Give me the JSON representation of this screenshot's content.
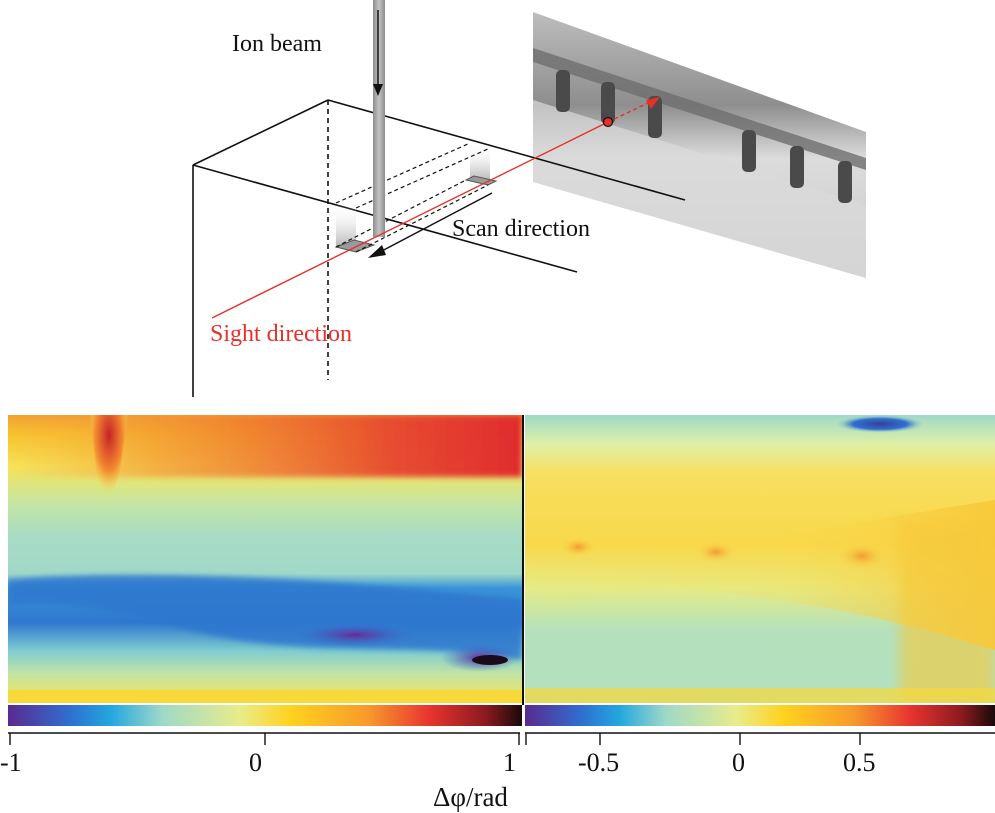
{
  "schematic": {
    "ion_beam_label": "Ion beam",
    "scan_direction_label": "Scan direction",
    "sight_direction_label": "Sight direction",
    "sight_color": "#e8302a"
  },
  "phase_maps": {
    "left_colorbar": {
      "ticks": [
        "-1",
        "0",
        "1"
      ],
      "range": [
        -1,
        1
      ]
    },
    "right_colorbar": {
      "ticks": [
        "-0.5",
        "0",
        "0.5"
      ],
      "range": [
        -0.9,
        0.9
      ]
    },
    "axis_label": "Δφ/rad",
    "colormap": [
      "#5a2a8f",
      "#2f6fd0",
      "#22a7df",
      "#9fd9c8",
      "#f2e86a",
      "#ffd21e",
      "#f79a2b",
      "#e8342f",
      "#8a1a20",
      "#1a0a0a"
    ]
  }
}
